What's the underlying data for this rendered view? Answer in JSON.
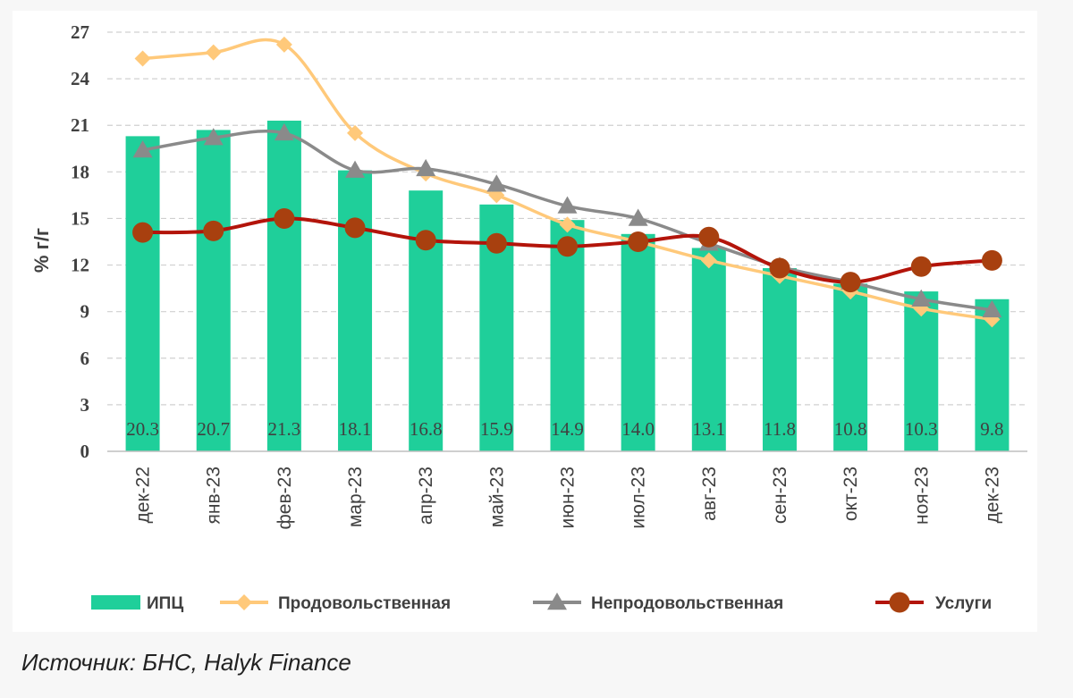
{
  "chart_data": {
    "type": "bar",
    "categories": [
      "дек-22",
      "янв-23",
      "фев-23",
      "мар-23",
      "апр-23",
      "май-23",
      "июн-23",
      "июл-23",
      "авг-23",
      "сен-23",
      "окт-23",
      "ноя-23",
      "дек-23"
    ],
    "ylabel": "% г/г",
    "ylim": [
      0,
      27
    ],
    "yticks": [
      0,
      3,
      6,
      9,
      12,
      15,
      18,
      21,
      24,
      27
    ],
    "grid": true,
    "legend_position": "bottom",
    "series": [
      {
        "name": "ИПЦ",
        "type": "bar",
        "color": "#1fcf9a",
        "values": [
          20.3,
          20.7,
          21.3,
          18.1,
          16.8,
          15.9,
          14.9,
          14.0,
          13.1,
          11.8,
          10.8,
          10.3,
          9.8
        ],
        "labels": [
          "20.3",
          "20.7",
          "21.3",
          "18.1",
          "16.8",
          "15.9",
          "14.9",
          "14.0",
          "13.1",
          "11.8",
          "10.8",
          "10.3",
          "9.8"
        ]
      },
      {
        "name": "Продовольственная",
        "type": "line",
        "marker": "diamond",
        "color": "#ffc97a",
        "values": [
          25.3,
          25.7,
          26.2,
          20.5,
          17.9,
          16.5,
          14.6,
          13.5,
          12.3,
          11.3,
          10.3,
          9.2,
          8.5
        ]
      },
      {
        "name": "Непродовольственная",
        "type": "line",
        "marker": "triangle",
        "color": "#8a8a8a",
        "values": [
          19.4,
          20.2,
          20.5,
          18.1,
          18.2,
          17.2,
          15.8,
          15.0,
          13.4,
          11.9,
          10.9,
          9.8,
          9.1
        ]
      },
      {
        "name": "Услуги",
        "type": "line",
        "marker": "circle",
        "color": "#b3140a",
        "marker_color": "#a8400f",
        "values": [
          14.1,
          14.2,
          15.0,
          14.4,
          13.6,
          13.4,
          13.2,
          13.5,
          13.8,
          11.8,
          10.9,
          11.9,
          12.3
        ]
      }
    ]
  },
  "source_note": "Источник: БНС, Halyk Finance"
}
